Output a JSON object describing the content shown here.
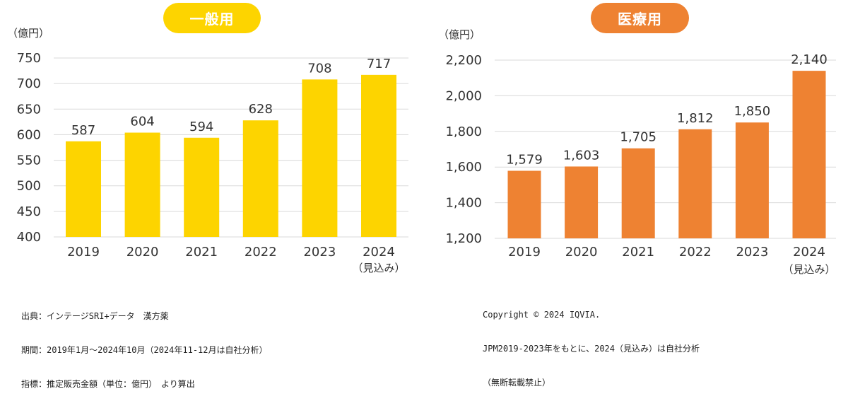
{
  "colors": {
    "general": "#FDD400",
    "medical": "#EE8232",
    "grid": "#D9D9D9",
    "text": "#333333"
  },
  "chart_data": [
    {
      "type": "bar",
      "title": "一般用",
      "unit_label": "（億円）",
      "categories": [
        "2019",
        "2020",
        "2021",
        "2022",
        "2023",
        "2024"
      ],
      "category_sublabels": [
        "",
        "",
        "",
        "",
        "",
        "（見込み）"
      ],
      "values": [
        587,
        604,
        594,
        628,
        708,
        717
      ],
      "value_labels": [
        "587",
        "604",
        "594",
        "628",
        "708",
        "717"
      ],
      "yticks": [
        "400",
        "450",
        "500",
        "550",
        "600",
        "650",
        "700",
        "750"
      ],
      "ylim": [
        400,
        750
      ],
      "grid": true
    },
    {
      "type": "bar",
      "title": "医療用",
      "unit_label": "（億円）",
      "categories": [
        "2019",
        "2020",
        "2021",
        "2022",
        "2023",
        "2024"
      ],
      "category_sublabels": [
        "",
        "",
        "",
        "",
        "",
        "（見込み）"
      ],
      "values": [
        1579,
        1603,
        1705,
        1812,
        1850,
        2140
      ],
      "value_labels": [
        "1,579",
        "1,603",
        "1,705",
        "1,812",
        "1,850",
        "2,140"
      ],
      "yticks": [
        "1,200",
        "1,400",
        "1,600",
        "1,800",
        "2,000",
        "2,200"
      ],
      "ylim": [
        1200,
        2200
      ],
      "grid": true
    }
  ],
  "notes": {
    "left": [
      "出典：インテージSRI+データ　漢方薬",
      "期間：2019年1月～2024年10月（2024年11-12月は自社分析）",
      "指標：推定販売金額（単位：億円）　より算出"
    ],
    "right": [
      "Copyright © 2024 IQVIA.",
      "JPM2019-2023年をもとに、2024（見込み）は自社分析",
      "（無断転載禁止）"
    ]
  }
}
